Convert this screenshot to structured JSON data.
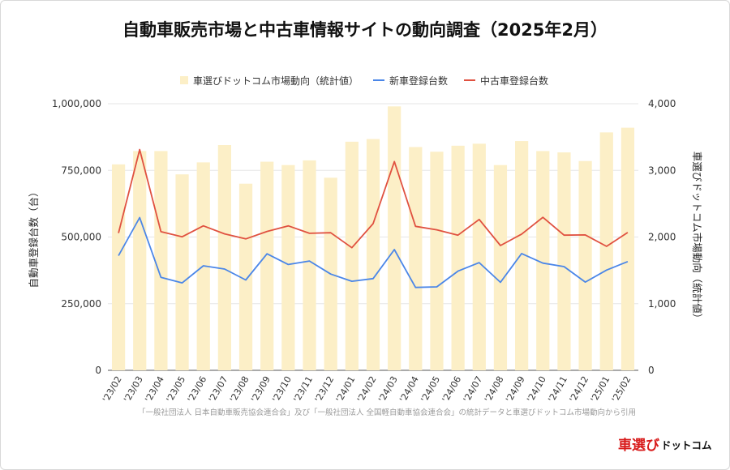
{
  "title": "自動車販売市場と中古車情報サイトの動向調査（2025年2月）",
  "legend": [
    {
      "label": "車選びドットコム市場動向（統計値）",
      "color": "#fcefc7",
      "kind": "bar"
    },
    {
      "label": "新車登録台数",
      "color": "#4a86e8",
      "kind": "line"
    },
    {
      "label": "中古車登録台数",
      "color": "#e05140",
      "kind": "line"
    }
  ],
  "axes": {
    "left_title": "自動車登録台数（台）",
    "right_title": "車選びドットコム市場動向（統計値）",
    "left_ticks": [
      "0",
      "250,000",
      "500,000",
      "750,000",
      "1,000,000"
    ],
    "right_ticks": [
      "0",
      "1,000",
      "2,000",
      "3,000",
      "4,000"
    ]
  },
  "source": "「一般社団法人 日本自動車販売協会連合会」及び「一般社団法人 全国軽自動車協会連合会」の統計データと車選びドットコム市場動向から引用",
  "logo": {
    "main": "車選び",
    "sub": "ドットコム"
  },
  "colors": {
    "bar": "#fcefc7",
    "new_car": "#4a86e8",
    "used_car": "#e05140",
    "grid": "#e6e6e6"
  },
  "chart_data": {
    "type": "bar",
    "title": "自動車販売市場と中古車情報サイトの動向調査（2025年2月）",
    "categories": [
      "'23/02",
      "'23/03",
      "'23/04",
      "'23/05",
      "'23/06",
      "'23/07",
      "'23/08",
      "'23/09",
      "'23/10",
      "'23/11",
      "'23/12",
      "'24/01",
      "'24/02",
      "'24/03",
      "'24/04",
      "'24/05",
      "'24/06",
      "'24/07",
      "'24/08",
      "'24/09",
      "'24/10",
      "'24/11",
      "'24/12",
      "'25/01",
      "'25/02"
    ],
    "ylabel": "自動車登録台数（台）",
    "ylim": [
      0,
      1000000
    ],
    "y2label": "車選びドットコム市場動向（統計値）",
    "y2lim": [
      0,
      4000
    ],
    "grid": true,
    "legend_position": "top",
    "series": [
      {
        "name": "車選びドットコム市場動向（統計値）",
        "type": "bar",
        "axis": "right",
        "values": [
          3090,
          3290,
          3290,
          2940,
          3120,
          3380,
          2800,
          3130,
          3080,
          3150,
          2890,
          3430,
          3470,
          3960,
          3350,
          3280,
          3370,
          3400,
          3080,
          3440,
          3290,
          3270,
          3140,
          3570,
          3640
        ]
      },
      {
        "name": "新車登録台数",
        "type": "line",
        "axis": "left",
        "values": [
          430000,
          573000,
          349000,
          328000,
          392000,
          380000,
          339000,
          437000,
          397000,
          410000,
          361000,
          334000,
          344000,
          453000,
          311000,
          313000,
          372000,
          404000,
          330000,
          438000,
          402000,
          389000,
          331000,
          376000,
          408000
        ]
      },
      {
        "name": "中古車登録台数",
        "type": "line",
        "axis": "left",
        "values": [
          515000,
          828000,
          520000,
          501000,
          542000,
          512000,
          493000,
          521000,
          542000,
          514000,
          516000,
          460000,
          550000,
          783000,
          540000,
          527000,
          507000,
          566000,
          468000,
          511000,
          574000,
          507000,
          508000,
          465000,
          517000
        ]
      }
    ]
  }
}
